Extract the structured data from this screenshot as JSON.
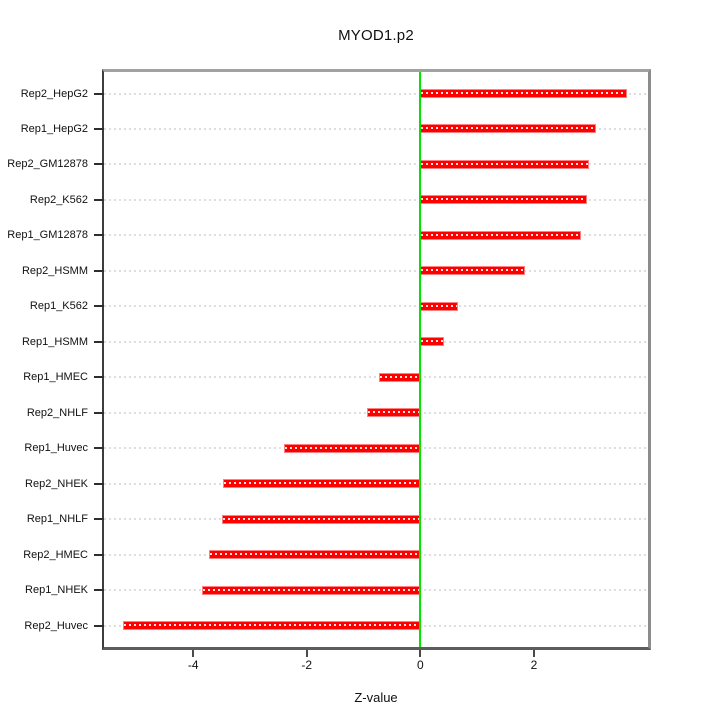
{
  "title": "MYOD1.p2",
  "chart_data": {
    "type": "bar",
    "orientation": "horizontal",
    "title": "MYOD1.p2",
    "xlabel": "Z-value",
    "ylabel": "",
    "categories": [
      "Rep2_HepG2",
      "Rep1_HepG2",
      "Rep2_GM12878",
      "Rep2_K562",
      "Rep1_GM12878",
      "Rep2_HSMM",
      "Rep1_K562",
      "Rep1_HSMM",
      "Rep1_HMEC",
      "Rep2_NHLF",
      "Rep1_Huvec",
      "Rep2_NHEK",
      "Rep1_NHLF",
      "Rep2_HMEC",
      "Rep1_NHEK",
      "Rep2_Huvec"
    ],
    "values": [
      3.64,
      3.09,
      2.97,
      2.93,
      2.82,
      1.85,
      0.67,
      0.41,
      -0.73,
      -0.94,
      -2.4,
      -3.47,
      -3.49,
      -3.72,
      -3.84,
      -5.23
    ],
    "xlim": [
      -5.57,
      3.99
    ],
    "xticks": [
      -4,
      -2,
      0,
      2
    ],
    "grid": true,
    "legend": "none",
    "colors": {
      "bar_fill": "#ff0000",
      "bar_edge": "#ff8080",
      "zero_line": "#00e400",
      "gridline": "#dedede",
      "box": "#8c8c8c"
    }
  }
}
